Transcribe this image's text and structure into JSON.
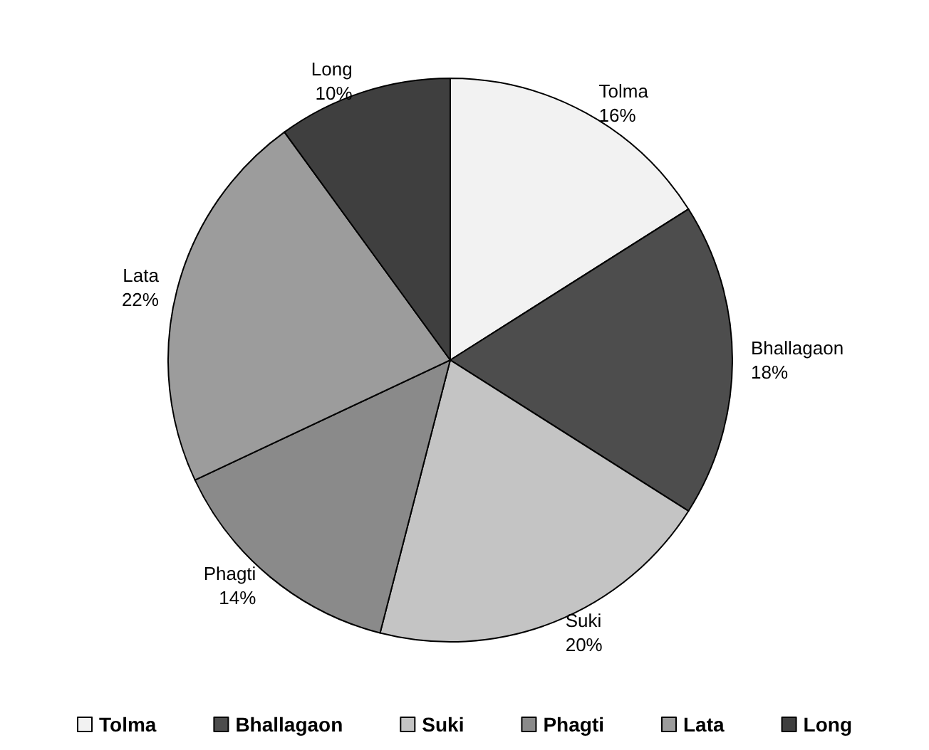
{
  "chart_data": {
    "type": "pie",
    "categories": [
      "Tolma",
      "Bhallagaon",
      "Suki",
      "Phagti",
      "Lata",
      "Long"
    ],
    "values": [
      16,
      18,
      20,
      14,
      22,
      10
    ],
    "colors": [
      "#f2f2f2",
      "#4d4d4d",
      "#c4c4c4",
      "#8a8a8a",
      "#9c9c9c",
      "#3f3f3f"
    ],
    "value_labels": [
      "16%",
      "18%",
      "20%",
      "14%",
      "22%",
      "10%"
    ],
    "legend": "bottom"
  }
}
